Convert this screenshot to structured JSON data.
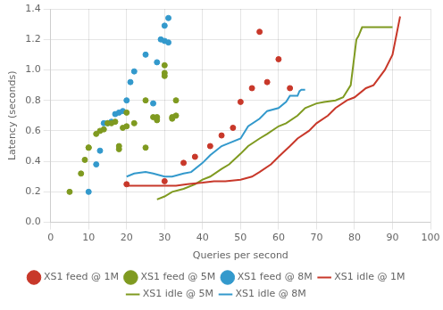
{
  "chart_data": {
    "type": "scatter",
    "xlabel": "Queries per second",
    "ylabel": "Latency (seconds)",
    "xlim": [
      0,
      100
    ],
    "ylim": [
      0,
      1.4
    ],
    "xticks": [
      0,
      10,
      20,
      30,
      40,
      50,
      60,
      70,
      80,
      90,
      100
    ],
    "yticks": [
      {
        "value": 0,
        "label": "0.0"
      },
      0.2,
      0.4,
      0.6,
      0.8,
      {
        "value": 1.0,
        "label": "1.0"
      },
      1.2,
      1.4
    ],
    "grid": true,
    "legend": "bottom",
    "series": [
      {
        "name": "XS1 feed @ 1M",
        "type": "scatter",
        "marker": "circle",
        "color": "#c8382a",
        "x": [
          20,
          30,
          35,
          38,
          42,
          45,
          48,
          50,
          53,
          55,
          57,
          60,
          63
        ],
        "values": [
          0.25,
          0.27,
          0.39,
          0.43,
          0.5,
          0.57,
          0.62,
          0.79,
          0.88,
          1.25,
          0.92,
          1.07,
          0.88
        ]
      },
      {
        "name": "XS1 feed @ 5M",
        "type": "scatter",
        "marker": "circle",
        "color": "#7f9a20",
        "x": [
          5,
          8,
          9,
          10,
          10,
          12,
          13,
          14,
          15,
          16,
          17,
          18,
          18,
          19,
          20,
          20,
          22,
          25,
          25,
          27,
          28,
          28,
          30,
          30,
          30,
          32,
          32,
          33,
          33
        ],
        "values": [
          0.2,
          0.32,
          0.41,
          0.49,
          0.49,
          0.58,
          0.6,
          0.61,
          0.65,
          0.65,
          0.66,
          0.48,
          0.5,
          0.62,
          0.72,
          0.63,
          0.65,
          0.49,
          0.8,
          0.69,
          0.69,
          0.67,
          1.03,
          0.98,
          0.96,
          0.68,
          0.69,
          0.7,
          0.8
        ]
      },
      {
        "name": "XS1 feed @ 8M",
        "type": "scatter",
        "marker": "circle",
        "color": "#3399cc",
        "x": [
          10,
          12,
          13,
          14,
          15,
          16,
          17,
          18,
          19,
          20,
          21,
          22,
          25,
          27,
          28,
          29,
          30,
          30,
          31,
          31
        ],
        "values": [
          0.2,
          0.38,
          0.47,
          0.65,
          0.65,
          0.66,
          0.71,
          0.72,
          0.73,
          0.8,
          0.92,
          0.99,
          1.1,
          0.78,
          1.05,
          1.2,
          1.19,
          1.29,
          1.34,
          1.18
        ]
      },
      {
        "name": "XS1 idle @ 1M",
        "type": "line",
        "line_style": "solid",
        "color": "#c8382a",
        "x": [
          20,
          22,
          25,
          28,
          30,
          33,
          36,
          40,
          43,
          46,
          50,
          53,
          55,
          58,
          60,
          63,
          65,
          68,
          70,
          73,
          75,
          78,
          80,
          83,
          85,
          88,
          90,
          92
        ],
        "values": [
          0.24,
          0.24,
          0.24,
          0.24,
          0.24,
          0.24,
          0.25,
          0.26,
          0.27,
          0.27,
          0.28,
          0.3,
          0.33,
          0.38,
          0.43,
          0.5,
          0.55,
          0.6,
          0.65,
          0.7,
          0.75,
          0.8,
          0.82,
          0.88,
          0.9,
          1.0,
          1.1,
          1.35
        ]
      },
      {
        "name": "XS1 idle @ 5M",
        "type": "line",
        "line_style": "solid",
        "color": "#7f9a20",
        "x": [
          28,
          30,
          32,
          35,
          38,
          40,
          42,
          45,
          47,
          50,
          52,
          55,
          57,
          60,
          62,
          65,
          67,
          70,
          72,
          75,
          77,
          79,
          80,
          80.5,
          81,
          82,
          85,
          87,
          90
        ],
        "values": [
          0.15,
          0.17,
          0.2,
          0.22,
          0.25,
          0.28,
          0.3,
          0.35,
          0.38,
          0.45,
          0.5,
          0.55,
          0.58,
          0.63,
          0.65,
          0.7,
          0.75,
          0.78,
          0.79,
          0.8,
          0.82,
          0.9,
          1.1,
          1.2,
          1.22,
          1.28,
          1.28,
          1.28,
          1.28
        ]
      },
      {
        "name": "XS1 idle @ 8M",
        "type": "line",
        "line_style": "solid",
        "color": "#3399cc",
        "x": [
          20,
          22,
          25,
          27,
          30,
          32,
          35,
          37,
          40,
          42,
          45,
          47,
          50,
          52,
          55,
          57,
          60,
          62,
          63,
          65,
          65.5,
          66,
          67
        ],
        "values": [
          0.3,
          0.32,
          0.33,
          0.32,
          0.3,
          0.3,
          0.32,
          0.33,
          0.39,
          0.44,
          0.5,
          0.52,
          0.55,
          0.63,
          0.68,
          0.73,
          0.75,
          0.79,
          0.83,
          0.83,
          0.86,
          0.87,
          0.87
        ]
      }
    ]
  }
}
